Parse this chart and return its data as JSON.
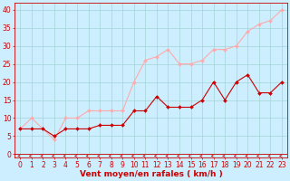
{
  "x": [
    0,
    1,
    2,
    3,
    4,
    5,
    6,
    7,
    8,
    9,
    10,
    11,
    12,
    13,
    14,
    15,
    16,
    17,
    18,
    19,
    20,
    21,
    22,
    23
  ],
  "y_moyen": [
    7,
    7,
    7,
    5,
    7,
    7,
    7,
    8,
    8,
    8,
    12,
    12,
    16,
    13,
    13,
    13,
    15,
    20,
    15,
    20,
    22,
    17,
    17,
    20
  ],
  "y_rafales": [
    7,
    10,
    7,
    4,
    10,
    10,
    12,
    12,
    12,
    12,
    20,
    26,
    27,
    29,
    25,
    25,
    26,
    29,
    29,
    30,
    34,
    36,
    37,
    40
  ],
  "color_moyen": "#cc0000",
  "color_rafales": "#ffaaaa",
  "background_color": "#cceeff",
  "grid_color": "#99cccc",
  "xlabel": "Vent moyen/en rafales ( km/h )",
  "xlabel_color": "#cc0000",
  "ylim": [
    -1,
    42
  ],
  "yticks": [
    0,
    5,
    10,
    15,
    20,
    25,
    30,
    35,
    40
  ],
  "xticks": [
    0,
    1,
    2,
    3,
    4,
    5,
    6,
    7,
    8,
    9,
    10,
    11,
    12,
    13,
    14,
    15,
    16,
    17,
    18,
    19,
    20,
    21,
    22,
    23
  ],
  "tick_fontsize": 5.5,
  "axis_fontsize": 6.5,
  "xlim": [
    -0.5,
    23.5
  ]
}
